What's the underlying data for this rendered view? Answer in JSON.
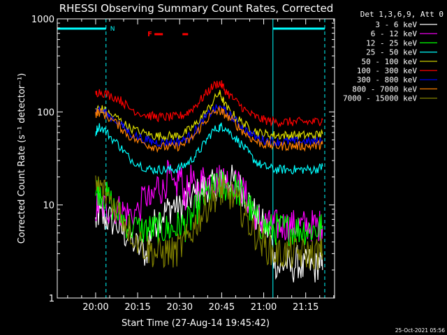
{
  "chart_data": {
    "type": "line",
    "title": "RHESSI Observing Summary Count Rates, Corrected",
    "xlabel": "Start Time (27-Aug-14 19:45:42)",
    "ylabel": "Corrected Count Rate (s⁻¹ detector⁻¹)",
    "yscale": "log",
    "ylim": [
      1,
      1000
    ],
    "xlim_minutes": [
      -13.7,
      85.3
    ],
    "x_ticks": [
      "20:00",
      "20:15",
      "20:30",
      "20:45",
      "21:00",
      "21:15"
    ],
    "y_ticks": [
      "1",
      "10",
      "100",
      "1000"
    ],
    "legend_title": "Det 1,3,6,9, Att 0",
    "legend_placement": "outside-right",
    "footer_timestamp": "25-Oct-2021 05:56",
    "markers": {
      "n_label": "N",
      "f_label": "F",
      "night_color": "#00ffff",
      "flare_color": "#ff0000",
      "night_intervals_minutes": [
        [
          -13.7,
          3.7
        ],
        [
          63.3,
          81.8
        ]
      ],
      "dashed_lines_minutes": [
        3.7,
        81.8
      ],
      "solid_lines_minutes": [
        -13.7,
        63.3
      ],
      "flare_intervals_minutes": [
        [
          21.0,
          24.0
        ],
        [
          31.0,
          33.0
        ]
      ]
    },
    "x_minutes": [
      0,
      1,
      3,
      5,
      8,
      10,
      12,
      15,
      18,
      20,
      22,
      24,
      26,
      28,
      30,
      32,
      34,
      36,
      38,
      40,
      42,
      44,
      45,
      46,
      48,
      50,
      52,
      54,
      56,
      58,
      60,
      62,
      64,
      66,
      68,
      70,
      72,
      74,
      76,
      78,
      80,
      81
    ],
    "series": [
      {
        "name": "3 - 6 keV",
        "color": "#ffffff",
        "values": [
          6.5,
          8,
          7,
          7,
          6,
          5,
          4.5,
          3.5,
          3,
          5.5,
          7,
          8,
          9,
          10,
          9,
          11,
          12,
          13,
          15,
          16,
          16,
          17,
          17,
          18,
          19,
          17,
          15,
          12,
          9,
          7,
          6,
          5,
          2.5,
          2,
          2.5,
          2,
          2.5,
          2,
          2.5,
          2,
          2.5,
          2
        ]
      },
      {
        "name": "6 - 12 keV",
        "color": "#ff00ff",
        "values": [
          9,
          10,
          9.5,
          9,
          9,
          8.5,
          8,
          8.5,
          13,
          10,
          17,
          14,
          22,
          13,
          22,
          12,
          19,
          13,
          19,
          18,
          19,
          19,
          19,
          19,
          18,
          17,
          15,
          12,
          9,
          7,
          6.5,
          6,
          6,
          6,
          6,
          6,
          6,
          6,
          6,
          6,
          6,
          6
        ]
      },
      {
        "name": "12 - 25 keV",
        "color": "#00ff00",
        "values": [
          14,
          15,
          13,
          11,
          8,
          7,
          6,
          5.5,
          5.5,
          5.5,
          5.5,
          5.5,
          5.5,
          5.5,
          6,
          6,
          7,
          9,
          11,
          13,
          15,
          16,
          16,
          16,
          16,
          15,
          13,
          11,
          8,
          6.5,
          6,
          5.5,
          5.5,
          5.5,
          5.5,
          5.5,
          5.5,
          5.5,
          5.5,
          5.5,
          5.5,
          5.5
        ]
      },
      {
        "name": "25 - 50 keV",
        "color": "#00ffff",
        "values": [
          60,
          70,
          65,
          55,
          45,
          38,
          32,
          28,
          25,
          24,
          24,
          24,
          24,
          24,
          25,
          27,
          30,
          35,
          42,
          52,
          63,
          68,
          70,
          68,
          60,
          52,
          45,
          38,
          32,
          28,
          26,
          25,
          24,
          24,
          24,
          24,
          24,
          24,
          24,
          24,
          25,
          26
        ]
      },
      {
        "name": "50 - 100 keV",
        "color": "#e0e000",
        "values": [
          105,
          110,
          105,
          95,
          85,
          75,
          68,
          62,
          58,
          56,
          55,
          55,
          55,
          55,
          56,
          60,
          66,
          75,
          90,
          105,
          130,
          160,
          145,
          120,
          100,
          88,
          78,
          70,
          65,
          60,
          58,
          57,
          56,
          56,
          56,
          56,
          56,
          56,
          56,
          56,
          57,
          58
        ]
      },
      {
        "name": "100 - 300 keV",
        "color": "#ff0000",
        "values": [
          155,
          165,
          160,
          150,
          140,
          125,
          110,
          100,
          93,
          90,
          88,
          88,
          88,
          88,
          90,
          95,
          105,
          120,
          140,
          165,
          190,
          205,
          195,
          175,
          150,
          130,
          115,
          100,
          92,
          86,
          82,
          80,
          78,
          78,
          78,
          78,
          78,
          78,
          78,
          78,
          80,
          82
        ]
      },
      {
        "name": "300 - 800 keV",
        "color": "#0000ff",
        "values": [
          100,
          105,
          100,
          90,
          78,
          68,
          60,
          54,
          50,
          48,
          47,
          47,
          47,
          47,
          48,
          51,
          56,
          65,
          78,
          92,
          105,
          110,
          108,
          102,
          92,
          80,
          70,
          62,
          56,
          52,
          50,
          49,
          48,
          48,
          48,
          48,
          48,
          48,
          48,
          48,
          49,
          50
        ]
      },
      {
        "name": "800 - 7000 keV",
        "color": "#ff8000",
        "values": [
          95,
          100,
          95,
          85,
          73,
          63,
          55,
          49,
          45,
          43,
          42,
          42,
          42,
          42,
          43,
          46,
          51,
          59,
          72,
          85,
          97,
          103,
          100,
          95,
          85,
          74,
          64,
          57,
          51,
          47,
          45,
          44,
          43,
          43,
          43,
          43,
          43,
          43,
          43,
          43,
          44,
          45
        ]
      },
      {
        "name": "7000 - 15000 keV",
        "color": "#808000",
        "values": [
          15,
          16,
          14,
          12,
          9,
          7,
          5.5,
          4.2,
          3.5,
          3.2,
          3,
          3,
          3.2,
          3,
          3.5,
          4,
          5,
          6.5,
          8,
          10,
          12,
          14,
          14,
          14,
          13,
          11,
          9,
          7,
          5.5,
          4.5,
          3.8,
          3.3,
          3,
          3,
          3,
          3,
          3,
          3,
          3,
          3,
          3,
          3
        ]
      }
    ]
  }
}
